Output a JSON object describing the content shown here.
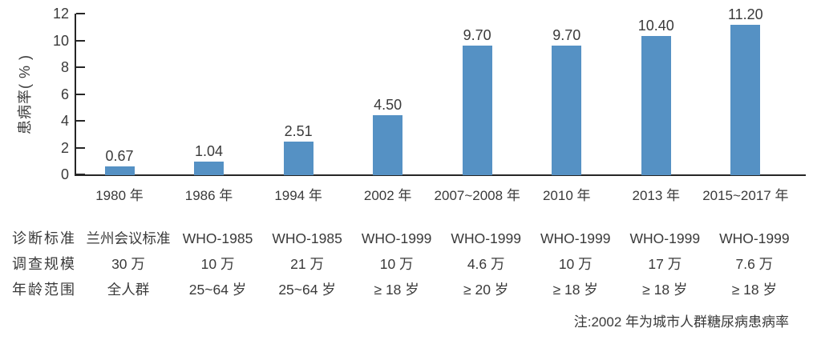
{
  "chart_data": {
    "type": "bar",
    "title": "",
    "ylabel": "患病率( % )",
    "xlabel": "",
    "ylim": [
      0,
      12
    ],
    "yticks": [
      0,
      2,
      4,
      6,
      8,
      10,
      12
    ],
    "grid": false,
    "legend": "none",
    "categories": [
      "1980 年",
      "1986 年",
      "1994 年",
      "2002 年",
      "2007~2008 年",
      "2010 年",
      "2013 年",
      "2015~2017 年"
    ],
    "values": [
      0.67,
      1.04,
      2.51,
      4.5,
      9.7,
      9.7,
      10.4,
      11.2
    ],
    "value_labels": [
      "0.67",
      "1.04",
      "2.51",
      "4.50",
      "9.70",
      "9.70",
      "10.40",
      "11.20"
    ],
    "bar_color": "#5591c4"
  },
  "table": {
    "rows": [
      {
        "header": "诊断标准",
        "cells": [
          "兰州会议标准",
          "WHO-1985",
          "WHO-1985",
          "WHO-1999",
          "WHO-1999",
          "WHO-1999",
          "WHO-1999",
          "WHO-1999"
        ]
      },
      {
        "header": "调查规模",
        "cells": [
          "30 万",
          "10 万",
          "21 万",
          "10 万",
          "4.6 万",
          "10 万",
          "17 万",
          "7.6 万"
        ]
      },
      {
        "header": "年龄范围",
        "cells": [
          "全人群",
          "25~64 岁",
          "25~64 岁",
          "≥ 18 岁",
          "≥ 20 岁",
          "≥ 18 岁",
          "≥ 18 岁",
          "≥ 18 岁"
        ]
      }
    ]
  },
  "note": "注:2002 年为城市人群糖尿病患病率",
  "colors": {
    "bar": "#5591c4",
    "text": "#3a3a3a",
    "axis": "#262626",
    "background": "#ffffff"
  }
}
